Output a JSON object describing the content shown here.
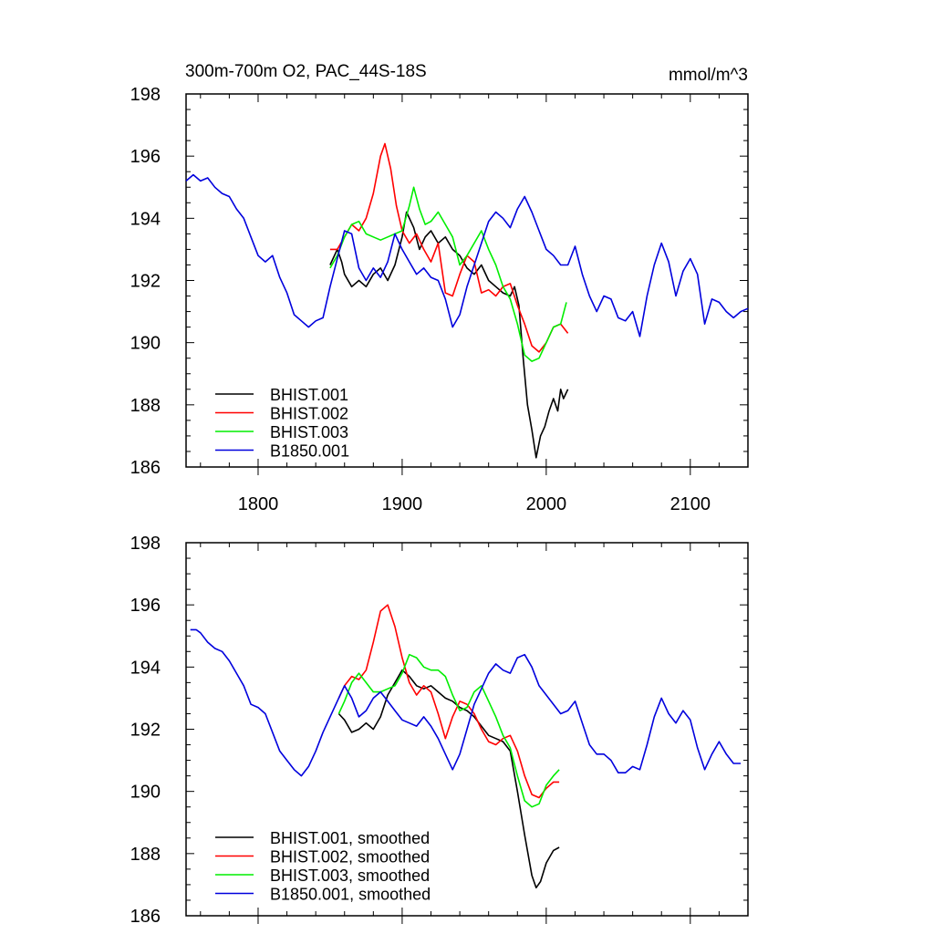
{
  "chart_data": [
    {
      "type": "line",
      "title": "300m-700m O2, PAC_44S-18S",
      "units": "mmol/m^3",
      "xlim": [
        1750,
        2140
      ],
      "ylim": [
        186,
        198
      ],
      "xticks": [
        1800,
        1900,
        2000,
        2100
      ],
      "xtick_labels": [
        "1800",
        "1900",
        "2000",
        "2100"
      ],
      "yticks": [
        186,
        188,
        190,
        192,
        194,
        196,
        198
      ],
      "ytick_labels": [
        "186",
        "188",
        "190",
        "192",
        "194",
        "196",
        "198"
      ],
      "legend_position": "bottom-left",
      "series": [
        {
          "name": "BHIST.001",
          "color": "#000000",
          "x": [
            1850,
            1855,
            1858,
            1860,
            1865,
            1870,
            1875,
            1880,
            1885,
            1890,
            1895,
            1900,
            1903,
            1908,
            1912,
            1916,
            1920,
            1925,
            1930,
            1935,
            1940,
            1945,
            1950,
            1955,
            1960,
            1965,
            1970,
            1975,
            1978,
            1981,
            1984,
            1987,
            1990,
            1993,
            1996,
            1999,
            2002,
            2005,
            2008,
            2010,
            2012,
            2015
          ],
          "y": [
            192.5,
            193.0,
            192.6,
            192.2,
            191.8,
            192.0,
            191.8,
            192.2,
            192.4,
            192.0,
            192.5,
            193.4,
            194.2,
            193.7,
            193.0,
            193.4,
            193.6,
            193.2,
            193.4,
            193.0,
            192.8,
            192.4,
            192.2,
            192.5,
            192.0,
            191.8,
            191.6,
            191.5,
            191.8,
            191.2,
            189.5,
            188.0,
            187.2,
            186.3,
            187.0,
            187.3,
            187.8,
            188.2,
            187.8,
            188.5,
            188.2,
            188.5
          ]
        },
        {
          "name": "BHIST.002",
          "color": "#ff0000",
          "x": [
            1850,
            1855,
            1860,
            1865,
            1870,
            1875,
            1880,
            1885,
            1888,
            1892,
            1896,
            1900,
            1905,
            1910,
            1915,
            1920,
            1925,
            1930,
            1935,
            1940,
            1945,
            1950,
            1955,
            1960,
            1965,
            1970,
            1975,
            1980,
            1985,
            1990,
            1995,
            2000,
            2005,
            2010,
            2015
          ],
          "y": [
            193.0,
            193.0,
            193.4,
            193.8,
            193.6,
            194.0,
            194.8,
            196.0,
            196.4,
            195.6,
            194.4,
            193.6,
            193.2,
            193.5,
            193.0,
            192.6,
            193.2,
            191.6,
            191.5,
            192.2,
            192.8,
            192.6,
            191.6,
            191.7,
            191.5,
            191.8,
            191.9,
            191.2,
            190.6,
            189.9,
            189.7,
            190.0,
            190.5,
            190.6,
            190.3
          ]
        },
        {
          "name": "BHIST.003",
          "color": "#00ee00",
          "x": [
            1850,
            1855,
            1860,
            1865,
            1870,
            1875,
            1880,
            1885,
            1890,
            1895,
            1900,
            1905,
            1908,
            1912,
            1916,
            1920,
            1925,
            1930,
            1935,
            1940,
            1945,
            1950,
            1955,
            1960,
            1965,
            1970,
            1975,
            1980,
            1985,
            1990,
            1995,
            2000,
            2005,
            2010,
            2014
          ],
          "y": [
            192.4,
            192.8,
            193.4,
            193.8,
            193.9,
            193.5,
            193.4,
            193.3,
            193.4,
            193.5,
            193.6,
            194.4,
            195.0,
            194.3,
            193.8,
            193.9,
            194.2,
            193.8,
            193.4,
            192.5,
            192.8,
            193.2,
            193.6,
            193.0,
            192.5,
            191.8,
            191.4,
            190.6,
            189.6,
            189.4,
            189.5,
            190.0,
            190.5,
            190.6,
            191.3
          ]
        },
        {
          "name": "B1850.001",
          "color": "#0000dd",
          "x": [
            1750,
            1755,
            1760,
            1765,
            1770,
            1775,
            1780,
            1785,
            1790,
            1795,
            1800,
            1805,
            1810,
            1815,
            1820,
            1825,
            1830,
            1835,
            1840,
            1845,
            1850,
            1855,
            1860,
            1865,
            1870,
            1875,
            1880,
            1885,
            1890,
            1895,
            1900,
            1905,
            1910,
            1915,
            1920,
            1925,
            1930,
            1935,
            1940,
            1945,
            1950,
            1955,
            1960,
            1965,
            1970,
            1975,
            1980,
            1985,
            1990,
            1995,
            2000,
            2005,
            2010,
            2015,
            2020,
            2025,
            2030,
            2035,
            2040,
            2045,
            2050,
            2055,
            2060,
            2065,
            2070,
            2075,
            2080,
            2085,
            2090,
            2095,
            2100,
            2105,
            2110,
            2115,
            2120,
            2125,
            2130,
            2135,
            2140
          ],
          "y": [
            195.2,
            195.4,
            195.2,
            195.3,
            195.0,
            194.8,
            194.7,
            194.3,
            194.0,
            193.4,
            192.8,
            192.6,
            192.8,
            192.1,
            191.6,
            190.9,
            190.7,
            190.5,
            190.7,
            190.8,
            191.8,
            192.7,
            193.6,
            193.5,
            192.4,
            192.0,
            192.4,
            192.1,
            192.6,
            193.5,
            193.0,
            192.6,
            192.2,
            192.4,
            192.1,
            192.0,
            191.4,
            190.5,
            190.9,
            191.8,
            192.5,
            193.2,
            193.9,
            194.2,
            194.0,
            193.7,
            194.3,
            194.7,
            194.2,
            193.6,
            193.0,
            192.8,
            192.5,
            192.5,
            193.1,
            192.2,
            191.5,
            191.0,
            191.5,
            191.4,
            190.8,
            190.7,
            191.0,
            190.2,
            191.5,
            192.5,
            193.2,
            192.6,
            191.5,
            192.3,
            192.7,
            192.2,
            190.6,
            191.4,
            191.3,
            191.0,
            190.8,
            191.0,
            191.1
          ]
        }
      ]
    },
    {
      "type": "line",
      "title": "",
      "units": "",
      "xlim": [
        1750,
        2140
      ],
      "ylim": [
        186,
        198
      ],
      "xticks": [
        1800,
        1900,
        2000,
        2100
      ],
      "xtick_labels": [],
      "yticks": [
        186,
        188,
        190,
        192,
        194,
        196,
        198
      ],
      "ytick_labels": [
        "186",
        "188",
        "190",
        "192",
        "194",
        "196",
        "198"
      ],
      "legend_position": "bottom-left",
      "series": [
        {
          "name": "BHIST.001, smoothed",
          "color": "#000000",
          "x": [
            1856,
            1860,
            1865,
            1870,
            1875,
            1880,
            1885,
            1890,
            1895,
            1900,
            1905,
            1910,
            1915,
            1920,
            1925,
            1930,
            1935,
            1940,
            1945,
            1950,
            1955,
            1960,
            1965,
            1970,
            1975,
            1980,
            1985,
            1990,
            1993,
            1996,
            2000,
            2005,
            2009
          ],
          "y": [
            192.5,
            192.3,
            191.9,
            192.0,
            192.2,
            192.0,
            192.4,
            193.1,
            193.5,
            193.9,
            193.7,
            193.4,
            193.3,
            193.4,
            193.2,
            193.0,
            192.9,
            192.7,
            192.6,
            192.4,
            192.1,
            191.8,
            191.7,
            191.6,
            191.3,
            190.0,
            188.6,
            187.3,
            186.9,
            187.1,
            187.7,
            188.1,
            188.2
          ]
        },
        {
          "name": "BHIST.002, smoothed",
          "color": "#ff0000",
          "x": [
            1856,
            1860,
            1865,
            1870,
            1875,
            1880,
            1885,
            1890,
            1895,
            1900,
            1905,
            1910,
            1915,
            1920,
            1925,
            1930,
            1935,
            1940,
            1945,
            1950,
            1955,
            1960,
            1965,
            1970,
            1975,
            1980,
            1985,
            1990,
            1995,
            2000,
            2005,
            2009
          ],
          "y": [
            193.0,
            193.4,
            193.7,
            193.6,
            193.9,
            194.8,
            195.8,
            196.0,
            195.3,
            194.3,
            193.5,
            193.1,
            193.4,
            193.2,
            192.5,
            191.7,
            192.4,
            192.9,
            192.8,
            192.5,
            192.0,
            191.6,
            191.5,
            191.7,
            191.8,
            191.3,
            190.5,
            189.9,
            189.8,
            190.1,
            190.3,
            190.3
          ]
        },
        {
          "name": "BHIST.003, smoothed",
          "color": "#00ee00",
          "x": [
            1856,
            1860,
            1865,
            1870,
            1875,
            1880,
            1885,
            1890,
            1895,
            1900,
            1905,
            1910,
            1915,
            1920,
            1925,
            1930,
            1935,
            1940,
            1945,
            1950,
            1955,
            1960,
            1965,
            1970,
            1975,
            1980,
            1985,
            1990,
            1995,
            2000,
            2005,
            2009
          ],
          "y": [
            192.5,
            192.9,
            193.5,
            193.8,
            193.5,
            193.2,
            193.2,
            193.3,
            193.4,
            193.8,
            194.4,
            194.3,
            194.0,
            193.9,
            193.9,
            193.7,
            193.1,
            192.6,
            192.7,
            193.2,
            193.4,
            192.9,
            192.4,
            191.8,
            191.4,
            190.5,
            189.7,
            189.5,
            189.6,
            190.2,
            190.5,
            190.7
          ]
        },
        {
          "name": "B1850.001, smoothed",
          "color": "#0000dd",
          "x": [
            1753,
            1757,
            1760,
            1765,
            1770,
            1775,
            1780,
            1785,
            1790,
            1795,
            1800,
            1805,
            1810,
            1815,
            1820,
            1825,
            1830,
            1835,
            1840,
            1845,
            1850,
            1855,
            1860,
            1865,
            1870,
            1875,
            1880,
            1885,
            1890,
            1895,
            1900,
            1905,
            1910,
            1915,
            1920,
            1925,
            1930,
            1935,
            1940,
            1945,
            1950,
            1955,
            1960,
            1965,
            1970,
            1975,
            1980,
            1985,
            1990,
            1995,
            2000,
            2005,
            2010,
            2015,
            2020,
            2025,
            2030,
            2035,
            2040,
            2045,
            2050,
            2055,
            2060,
            2065,
            2070,
            2075,
            2080,
            2085,
            2090,
            2095,
            2100,
            2105,
            2110,
            2115,
            2120,
            2125,
            2130,
            2135
          ],
          "y": [
            195.2,
            195.2,
            195.1,
            194.8,
            194.6,
            194.5,
            194.2,
            193.8,
            193.4,
            192.8,
            192.7,
            192.5,
            191.9,
            191.3,
            191.0,
            190.7,
            190.5,
            190.8,
            191.3,
            191.9,
            192.4,
            192.9,
            193.4,
            193.0,
            192.4,
            192.6,
            193.0,
            193.2,
            192.9,
            192.6,
            192.3,
            192.2,
            192.1,
            192.4,
            192.1,
            191.7,
            191.2,
            190.7,
            191.2,
            192.0,
            192.8,
            193.3,
            193.8,
            194.1,
            193.9,
            193.8,
            194.3,
            194.4,
            194.0,
            193.4,
            193.1,
            192.8,
            192.5,
            192.6,
            192.9,
            192.2,
            191.5,
            191.2,
            191.2,
            191.0,
            190.6,
            190.6,
            190.8,
            190.7,
            191.5,
            192.4,
            193.0,
            192.5,
            192.2,
            192.6,
            192.3,
            191.4,
            190.7,
            191.2,
            191.6,
            191.2,
            190.9,
            190.9
          ]
        }
      ]
    }
  ]
}
